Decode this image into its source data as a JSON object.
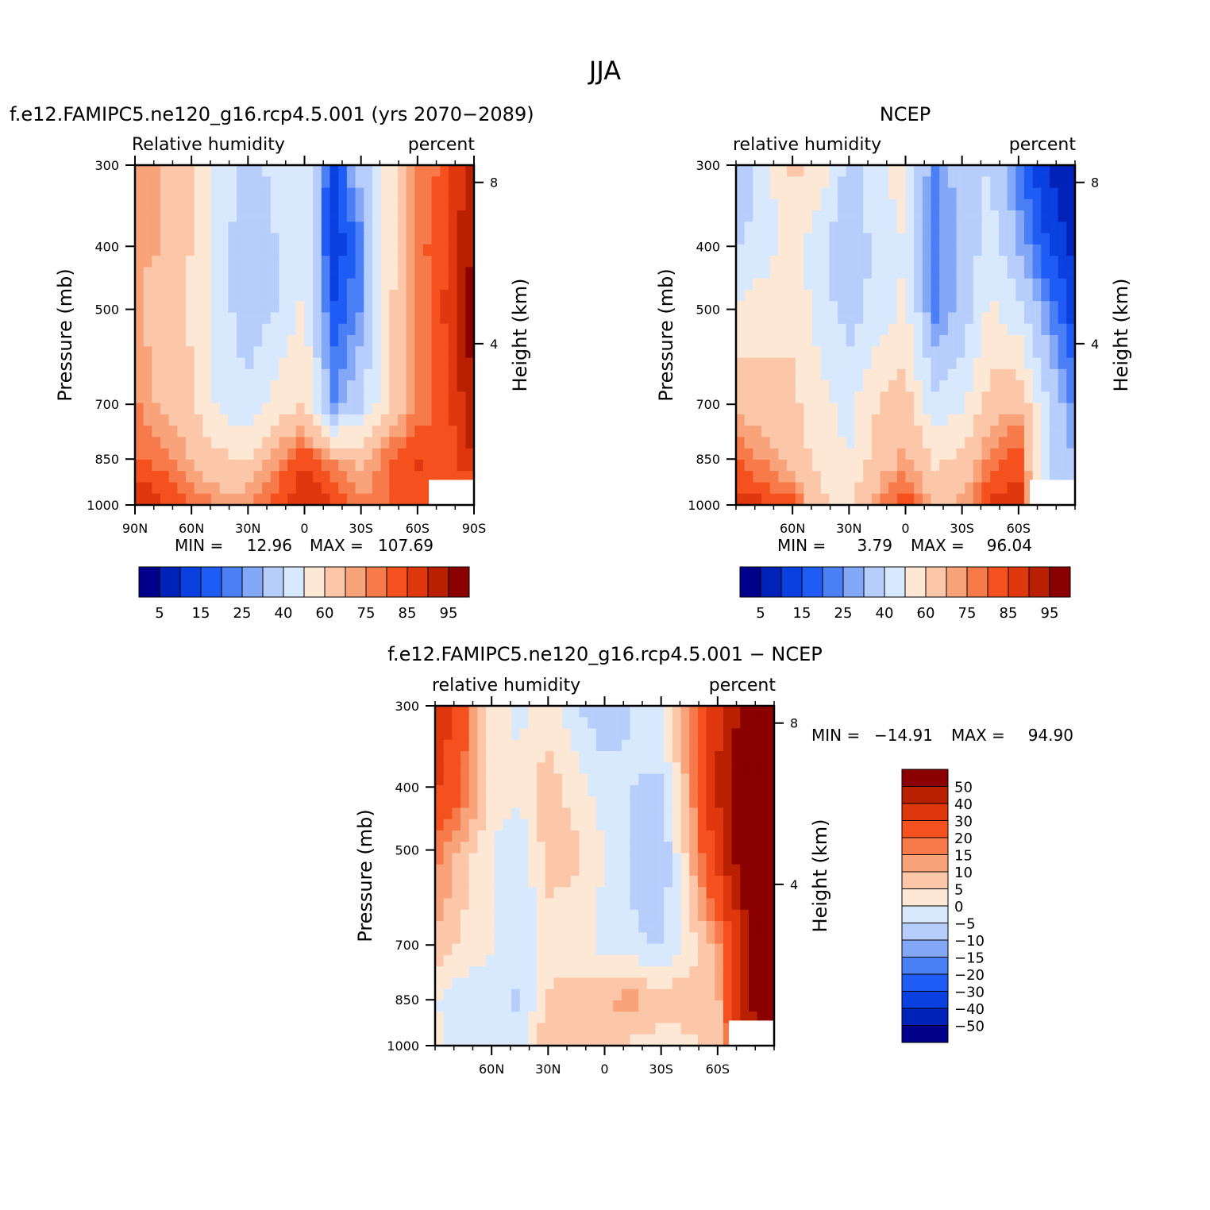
{
  "figure_title": "JJA",
  "panels": [
    {
      "id": "model",
      "title": "f.e12.FAMIPC5.ne120_g16.rcp4.5.001 (yrs 2070−2089)",
      "left_label": "Relative humidity",
      "right_label": "percent",
      "ylabel": "Pressure (mb)",
      "ylabel2": "Height (km)",
      "pressure_ticks": [
        "300",
        "400",
        "500",
        "700",
        "850",
        "1000"
      ],
      "height_ticks": [
        "8",
        "4"
      ],
      "lat_ticks": [
        "90N",
        "60N",
        "30N",
        "0",
        "30S",
        "60S",
        "90S"
      ],
      "stats": {
        "min_label": "MIN =",
        "min": "12.96",
        "max_label": "MAX =",
        "max": "107.69"
      },
      "colorbar_labels": [
        "5",
        "15",
        "25",
        "40",
        "60",
        "75",
        "85",
        "95"
      ]
    },
    {
      "id": "obs",
      "title": "NCEP",
      "left_label": "relative humidity",
      "right_label": "percent",
      "ylabel": "Pressure (mb)",
      "ylabel2": "Height (km)",
      "pressure_ticks": [
        "300",
        "400",
        "500",
        "700",
        "850",
        "1000"
      ],
      "height_ticks": [
        "8",
        "4"
      ],
      "lat_ticks": [
        "60N",
        "30N",
        "0",
        "30S",
        "60S"
      ],
      "stats": {
        "min_label": "MIN =",
        "min": "3.79",
        "max_label": "MAX =",
        "max": "96.04"
      },
      "colorbar_labels": [
        "5",
        "15",
        "25",
        "40",
        "60",
        "75",
        "85",
        "95"
      ]
    },
    {
      "id": "diff",
      "title": "f.e12.FAMIPC5.ne120_g16.rcp4.5.001 − NCEP",
      "left_label": "relative humidity",
      "right_label": "percent",
      "ylabel": "Pressure (mb)",
      "ylabel2": "Height (km)",
      "pressure_ticks": [
        "300",
        "400",
        "500",
        "700",
        "850",
        "1000"
      ],
      "height_ticks": [
        "8",
        "4"
      ],
      "lat_ticks": [
        "60N",
        "30N",
        "0",
        "30S",
        "60S"
      ],
      "stats": {
        "min_label": "MIN =",
        "min": "−14.91",
        "max_label": "MAX =",
        "max": "94.90"
      },
      "colorbar_labels": [
        "50",
        "40",
        "30",
        "20",
        "15",
        "10",
        "5",
        "0",
        "−5",
        "−10",
        "−15",
        "−20",
        "−30",
        "−40",
        "−50"
      ]
    }
  ],
  "colors": {
    "palette": [
      "#00008b",
      "#0022b8",
      "#0a3fe0",
      "#1f5cf5",
      "#4a7ff5",
      "#82a8f7",
      "#b7cdfb",
      "#d8e8fd",
      "#fde8d6",
      "#fcc6a8",
      "#f9a37a",
      "#f77a4a",
      "#f4511e",
      "#e0380e",
      "#b82000",
      "#8b0000"
    ]
  },
  "chart_data": [
    {
      "type": "heatmap",
      "title": "f.e12.FAMIPC5.ne120_g16.rcp4.5.001 (yrs 2070−2089)",
      "variable": "Relative humidity",
      "units": "percent",
      "x_axis": {
        "label": "",
        "ticks": [
          "90N",
          "60N",
          "30N",
          "0",
          "30S",
          "60S",
          "90S"
        ]
      },
      "y_axis": {
        "label": "Pressure (mb)",
        "ticks": [
          300,
          400,
          500,
          700,
          850,
          1000
        ],
        "scale": "log"
      },
      "y2_axis": {
        "label": "Height (km)",
        "ticks": [
          8,
          4
        ]
      },
      "min": 12.96,
      "max": 107.69,
      "levels": [
        5,
        10,
        15,
        20,
        25,
        30,
        40,
        50,
        60,
        70,
        75,
        80,
        85,
        90,
        95
      ],
      "lat": [
        90,
        75,
        60,
        45,
        30,
        15,
        0,
        -15,
        -30,
        -45,
        -60,
        -75,
        -90
      ],
      "pressure": [
        300,
        400,
        500,
        700,
        850,
        1000
      ],
      "values": [
        [
          72,
          70,
          60,
          48,
          35,
          44,
          45,
          12,
          35,
          55,
          75,
          82,
          95
        ],
        [
          72,
          70,
          60,
          46,
          30,
          40,
          48,
          10,
          22,
          55,
          78,
          84,
          96
        ],
        [
          72,
          64,
          58,
          44,
          34,
          40,
          52,
          15,
          25,
          58,
          76,
          86,
          98
        ],
        [
          76,
          68,
          62,
          48,
          42,
          54,
          60,
          25,
          38,
          60,
          76,
          82,
          96
        ],
        [
          80,
          78,
          70,
          62,
          60,
          74,
          85,
          75,
          65,
          80,
          86,
          82,
          90
        ],
        [
          92,
          86,
          80,
          74,
          76,
          84,
          90,
          86,
          78,
          80,
          82,
          80,
          78
        ]
      ]
    },
    {
      "type": "heatmap",
      "title": "NCEP",
      "variable": "relative humidity",
      "units": "percent",
      "x_axis": {
        "label": "",
        "ticks": [
          "60N",
          "30N",
          "0",
          "30S",
          "60S"
        ]
      },
      "y_axis": {
        "label": "Pressure (mb)",
        "ticks": [
          300,
          400,
          500,
          700,
          850,
          1000
        ],
        "scale": "log"
      },
      "y2_axis": {
        "label": "Height (km)",
        "ticks": [
          8,
          4
        ]
      },
      "min": 3.79,
      "max": 96.04,
      "levels": [
        5,
        10,
        15,
        20,
        25,
        30,
        40,
        50,
        60,
        70,
        75,
        80,
        85,
        90,
        95
      ],
      "lat": [
        90,
        75,
        60,
        45,
        30,
        15,
        0,
        -15,
        -30,
        -45,
        -60,
        -75,
        -90
      ],
      "pressure": [
        300,
        400,
        500,
        700,
        850,
        1000
      ],
      "values": [
        [
          28,
          45,
          62,
          58,
          35,
          48,
          55,
          22,
          35,
          40,
          20,
          10,
          5
        ],
        [
          40,
          45,
          56,
          42,
          30,
          44,
          50,
          22,
          32,
          45,
          30,
          15,
          8
        ],
        [
          52,
          56,
          58,
          45,
          36,
          44,
          52,
          22,
          32,
          52,
          42,
          25,
          12
        ],
        [
          68,
          64,
          62,
          54,
          46,
          60,
          66,
          42,
          48,
          65,
          70,
          40,
          22
        ],
        [
          80,
          74,
          66,
          56,
          50,
          64,
          72,
          58,
          62,
          76,
          84,
          40,
          30
        ],
        [
          88,
          86,
          82,
          62,
          58,
          74,
          84,
          70,
          72,
          86,
          90,
          45,
          32
        ]
      ]
    },
    {
      "type": "heatmap",
      "title": "f.e12.FAMIPC5.ne120_g16.rcp4.5.001 − NCEP",
      "variable": "relative humidity",
      "units": "percent",
      "x_axis": {
        "label": "",
        "ticks": [
          "60N",
          "30N",
          "0",
          "30S",
          "60S"
        ]
      },
      "y_axis": {
        "label": "Pressure (mb)",
        "ticks": [
          300,
          400,
          500,
          700,
          850,
          1000
        ],
        "scale": "log"
      },
      "y2_axis": {
        "label": "Height (km)",
        "ticks": [
          8,
          4
        ]
      },
      "min": -14.91,
      "max": 94.9,
      "levels": [
        -50,
        -40,
        -30,
        -20,
        -15,
        -10,
        -5,
        0,
        5,
        10,
        15,
        20,
        30,
        40,
        50
      ],
      "lat": [
        90,
        75,
        60,
        45,
        30,
        15,
        0,
        -15,
        -30,
        -45,
        -60,
        -75,
        -90
      ],
      "pressure": [
        300,
        400,
        500,
        700,
        850,
        1000
      ],
      "values": [
        [
          40,
          22,
          2,
          -2,
          2,
          -4,
          -10,
          -4,
          0,
          15,
          38,
          55,
          60
        ],
        [
          32,
          20,
          4,
          2,
          8,
          2,
          -2,
          -5,
          -6,
          12,
          40,
          60,
          65
        ],
        [
          18,
          8,
          0,
          -5,
          8,
          6,
          0,
          -6,
          -10,
          8,
          36,
          62,
          70
        ],
        [
          8,
          4,
          0,
          -4,
          2,
          2,
          -2,
          -4,
          -6,
          2,
          12,
          45,
          70
        ],
        [
          0,
          -4,
          -2,
          -6,
          6,
          8,
          10,
          12,
          8,
          8,
          8,
          50,
          60
        ],
        [
          2,
          -2,
          -4,
          -4,
          10,
          8,
          6,
          4,
          2,
          4,
          6,
          35,
          48
        ]
      ]
    }
  ]
}
